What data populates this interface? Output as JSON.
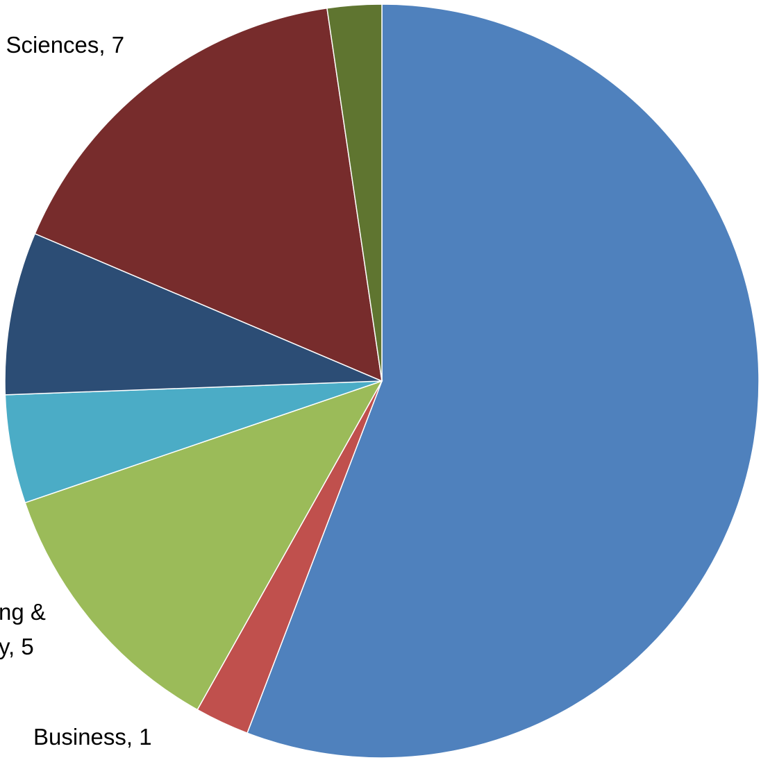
{
  "chart_data": {
    "type": "pie",
    "title": "",
    "start_angle_deg": 0,
    "direction": "clockwise",
    "slices": [
      {
        "label": "",
        "value": 24,
        "color": "#4F81BD"
      },
      {
        "label": "Business",
        "value": 1,
        "color": "#C0504D"
      },
      {
        "label": "",
        "value": 5,
        "color": "#9BBB59"
      },
      {
        "label": "",
        "value": 2,
        "color": "#4BACC6"
      },
      {
        "label": "",
        "value": 3,
        "color": "#2C4D75"
      },
      {
        "label": "",
        "value": 7,
        "color": "#772C2C"
      },
      {
        "label": "",
        "value": 1,
        "color": "#5F7530"
      }
    ],
    "data_labels": [
      {
        "text": "Business, 1"
      },
      {
        "text": "ng &"
      },
      {
        "text": "y, 5"
      },
      {
        "text": "l Sciences, 7"
      }
    ],
    "legend": "none",
    "slice_border_color": "#ffffff"
  }
}
